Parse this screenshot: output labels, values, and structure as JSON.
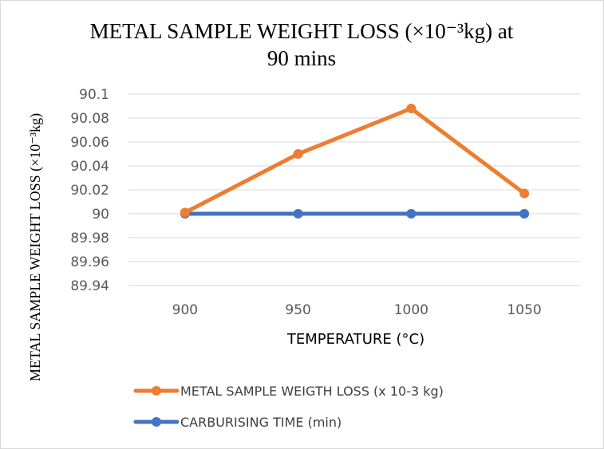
{
  "chart_data": {
    "type": "line",
    "title_line1": "METAL SAMPLE WEIGHT LOSS (×10⁻³kg) at",
    "title_line2": "90 mins",
    "xlabel": "TEMPERATURE (°C)",
    "ylabel": "METAL SAMPLE WEIGHT LOSS (×10⁻³kg)",
    "categories": [
      "900",
      "950",
      "1000",
      "1050"
    ],
    "ylim": [
      89.94,
      90.1
    ],
    "ytick_step": 0.02,
    "yticks": [
      "89.94",
      "89.96",
      "89.98",
      "90",
      "90.02",
      "90.04",
      "90.06",
      "90.08",
      "90.1"
    ],
    "grid": true,
    "legend_position": "bottom",
    "series": [
      {
        "name": "METAL SAMPLE WEIGTH LOSS (x 10-3 kg)",
        "color": "#ED7D31",
        "values": [
          90.001,
          90.05,
          90.088,
          90.017
        ]
      },
      {
        "name": "CARBURISING TIME (min)",
        "color": "#4472C4",
        "values": [
          90,
          90,
          90,
          90
        ]
      }
    ]
  }
}
